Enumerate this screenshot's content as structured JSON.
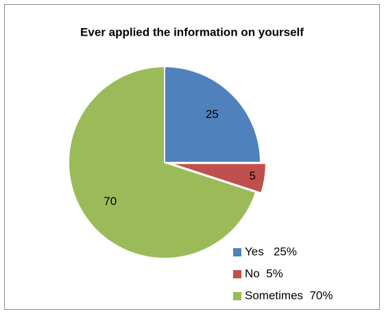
{
  "chart_data": {
    "type": "pie",
    "title": "Ever applied the information on yourself",
    "categories": [
      "Yes   25%",
      "No  5%",
      "Sometimes  70%"
    ],
    "values": [
      25,
      5,
      70
    ],
    "colors": [
      "#4f81bd",
      "#c0504d",
      "#9bbb59"
    ],
    "legend": "bottom-right"
  }
}
